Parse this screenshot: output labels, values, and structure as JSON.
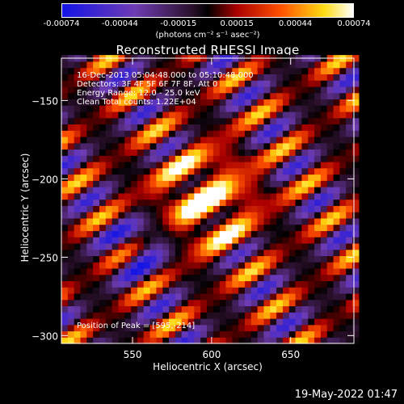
{
  "colorbar": {
    "ticks": [
      "-0.00074",
      "-0.00044",
      "-0.00015",
      "0.00015",
      "0.00044",
      "0.00074"
    ],
    "units": "(photons cm⁻² s⁻¹ asec⁻²)"
  },
  "annotations": {
    "time_range": "16-Dec-2013 05:04:48.000 to 05:10:48.000",
    "detectors": "Detectors: 3F 4F 5F 6F 7F 8F, Att 0",
    "energy": "Energy Range: 12.0 - 25.0 keV",
    "clean": "Clean     Total counts: 1.22E+04",
    "peak": "Position of Peak = [595,-214]"
  },
  "footer": {
    "date": "19-May-2022 01:47"
  },
  "chart_data": {
    "type": "heatmap",
    "title": "Reconstructed RHESSI Image",
    "xlabel": "Heliocentric X (arcsec)",
    "ylabel": "Heliocentric Y (arcsec)",
    "xlim": [
      505,
      690
    ],
    "ylim": [
      -305,
      -123
    ],
    "x_ticks": [
      550,
      600,
      650
    ],
    "y_ticks": [
      -150,
      -200,
      -250,
      -300
    ],
    "colorscale": "rainbow-symmetric (blue-purple-black-red-orange-yellow-white)",
    "value_range": [
      -0.00074,
      0.00074
    ],
    "peak": [
      595,
      -214
    ]
  }
}
